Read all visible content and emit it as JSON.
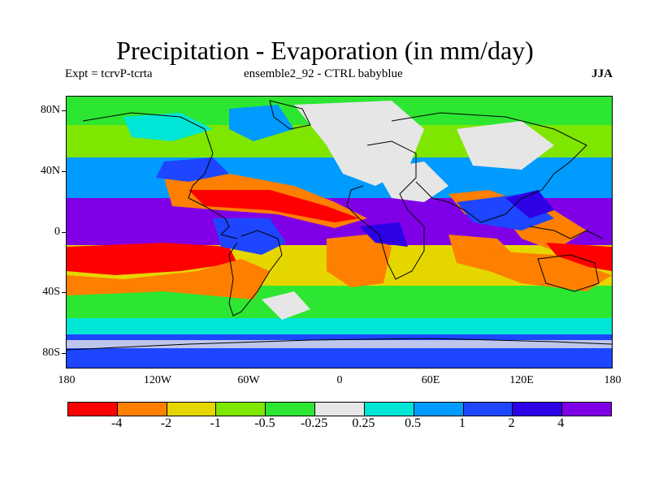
{
  "title": "Precipitation - Evaporation (in mm/day)",
  "subtitle_left": "Expt = tcrvP-tcrta",
  "subtitle_center": "ensemble2_92 - CTRL babyblue",
  "season": "JJA",
  "map": {
    "projection": "cylindrical-equidistant",
    "lon_range": [
      -180,
      180
    ],
    "lat_range": [
      -90,
      90
    ],
    "y_tick_labels": [
      "80N",
      "40N",
      "0",
      "40S",
      "80S"
    ],
    "x_tick_labels": [
      "180",
      "120W",
      "60W",
      "0",
      "60E",
      "120E",
      "180"
    ]
  },
  "legend": {
    "colors": [
      "#ff0000",
      "#ff7f00",
      "#e6d600",
      "#7fe600",
      "#2de632",
      "#e6e6e6",
      "#00e6d6",
      "#009bff",
      "#1e46ff",
      "#2d00e6",
      "#7f00e6"
    ],
    "labels": [
      "-4",
      "-2",
      "-1",
      "-0.5",
      "-0.25",
      "0.25",
      "0.5",
      "1",
      "2",
      "4"
    ]
  }
}
